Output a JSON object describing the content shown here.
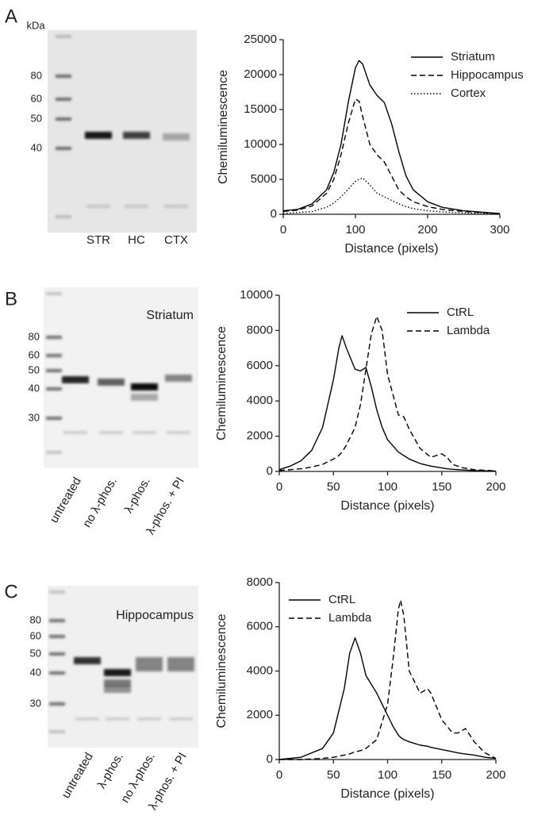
{
  "panels": [
    {
      "letter": "A",
      "blot": {
        "unit": "kDa",
        "markers": [
          "80",
          "60",
          "50",
          "40"
        ],
        "lanes": [
          "STR",
          "HC",
          "CTX"
        ]
      }
    },
    {
      "letter": "B",
      "blot": {
        "title": "Striatum",
        "markers": [
          "80",
          "60",
          "50",
          "40",
          "30"
        ],
        "lanes": [
          "untreated",
          "no λ-phos.",
          "λ-phos.",
          "λ-phos. + PI"
        ]
      }
    },
    {
      "letter": "C",
      "blot": {
        "title": "Hippocampus",
        "markers": [
          "80",
          "60",
          "50",
          "40",
          "30"
        ],
        "lanes": [
          "untreated",
          "λ-phos.",
          "no λ-phos.",
          "λ-phos. + PI"
        ]
      }
    }
  ],
  "chart_data": [
    {
      "type": "line",
      "xlabel": "Distance (pixels)",
      "ylabel": "Chemiluminescence",
      "x": [
        0,
        20,
        40,
        60,
        70,
        80,
        90,
        100,
        105,
        110,
        120,
        130,
        140,
        150,
        160,
        170,
        180,
        200,
        220,
        250,
        300
      ],
      "series": [
        {
          "name": "Striatum",
          "color": "#000000",
          "dash": "solid",
          "values": [
            500,
            700,
            1500,
            3500,
            6000,
            10000,
            16000,
            21000,
            22000,
            21500,
            18500,
            17000,
            16000,
            13000,
            9000,
            5500,
            3500,
            1800,
            1000,
            500,
            100
          ]
        },
        {
          "name": "Hippocampus",
          "color": "#000000",
          "dash": "dashed",
          "values": [
            400,
            600,
            1200,
            3000,
            5000,
            8500,
            13000,
            16500,
            16200,
            14000,
            10000,
            8500,
            7500,
            5500,
            3500,
            2500,
            1800,
            1100,
            700,
            400,
            100
          ]
        },
        {
          "name": "Cortex",
          "color": "#000000",
          "dash": "dotted",
          "values": [
            100,
            250,
            400,
            1000,
            1600,
            2500,
            3600,
            4700,
            5000,
            5200,
            4200,
            3000,
            2500,
            2000,
            1500,
            1100,
            800,
            500,
            350,
            200,
            0
          ]
        }
      ],
      "xlim": [
        0,
        300
      ],
      "ylim": [
        0,
        25000
      ],
      "xticks": [
        0,
        100,
        200,
        300
      ],
      "yticks": [
        0,
        5000,
        10000,
        15000,
        20000,
        25000
      ],
      "legend": "top-right"
    },
    {
      "type": "line",
      "xlabel": "Distance (pixels)",
      "ylabel": "Chemiluminescence",
      "x": [
        0,
        10,
        20,
        30,
        40,
        50,
        55,
        58,
        62,
        70,
        75,
        80,
        85,
        90,
        95,
        100,
        110,
        115,
        120,
        130,
        140,
        150,
        155,
        160,
        170,
        180,
        200
      ],
      "series": [
        {
          "name": "CtRL",
          "color": "#000000",
          "dash": "solid",
          "values": [
            100,
            300,
            600,
            1200,
            2500,
            5200,
            7000,
            7700,
            7000,
            5800,
            5700,
            5900,
            4800,
            3500,
            2500,
            1800,
            1100,
            900,
            700,
            450,
            300,
            200,
            150,
            120,
            80,
            50,
            20
          ]
        },
        {
          "name": "Lambda",
          "color": "#000000",
          "dash": "dashed",
          "values": [
            50,
            100,
            150,
            250,
            400,
            700,
            900,
            1100,
            1500,
            2500,
            3800,
            5800,
            7800,
            8800,
            8000,
            5500,
            3200,
            3100,
            2400,
            1300,
            800,
            1000,
            800,
            400,
            200,
            100,
            30
          ]
        }
      ],
      "xlim": [
        0,
        200
      ],
      "ylim": [
        0,
        10000
      ],
      "xticks": [
        0,
        50,
        100,
        150,
        200
      ],
      "yticks": [
        0,
        2000,
        4000,
        6000,
        8000,
        10000
      ],
      "legend": "top-right"
    },
    {
      "type": "line",
      "xlabel": "Distance (pixels)",
      "ylabel": "Chemiluminescence",
      "x": [
        0,
        20,
        40,
        50,
        60,
        65,
        70,
        75,
        80,
        90,
        100,
        105,
        110,
        112,
        115,
        120,
        130,
        137,
        140,
        150,
        160,
        165,
        172,
        180,
        190,
        200
      ],
      "series": [
        {
          "name": "CtRL",
          "color": "#000000",
          "dash": "solid",
          "values": [
            0,
            100,
            500,
            1200,
            3200,
            4800,
            5500,
            4800,
            3800,
            3000,
            2000,
            1500,
            1100,
            1000,
            900,
            800,
            650,
            600,
            550,
            450,
            350,
            300,
            250,
            200,
            100,
            50
          ]
        },
        {
          "name": "Lambda",
          "color": "#000000",
          "dash": "dashed",
          "values": [
            0,
            0,
            50,
            100,
            200,
            250,
            350,
            400,
            500,
            900,
            2500,
            4500,
            6800,
            7200,
            6500,
            4000,
            3000,
            3200,
            3000,
            1800,
            1200,
            1200,
            1400,
            800,
            300,
            50
          ]
        }
      ],
      "xlim": [
        0,
        200
      ],
      "ylim": [
        0,
        8000
      ],
      "xticks": [
        0,
        50,
        100,
        150,
        200
      ],
      "yticks": [
        0,
        2000,
        4000,
        6000,
        8000
      ],
      "legend": "top-left"
    }
  ]
}
